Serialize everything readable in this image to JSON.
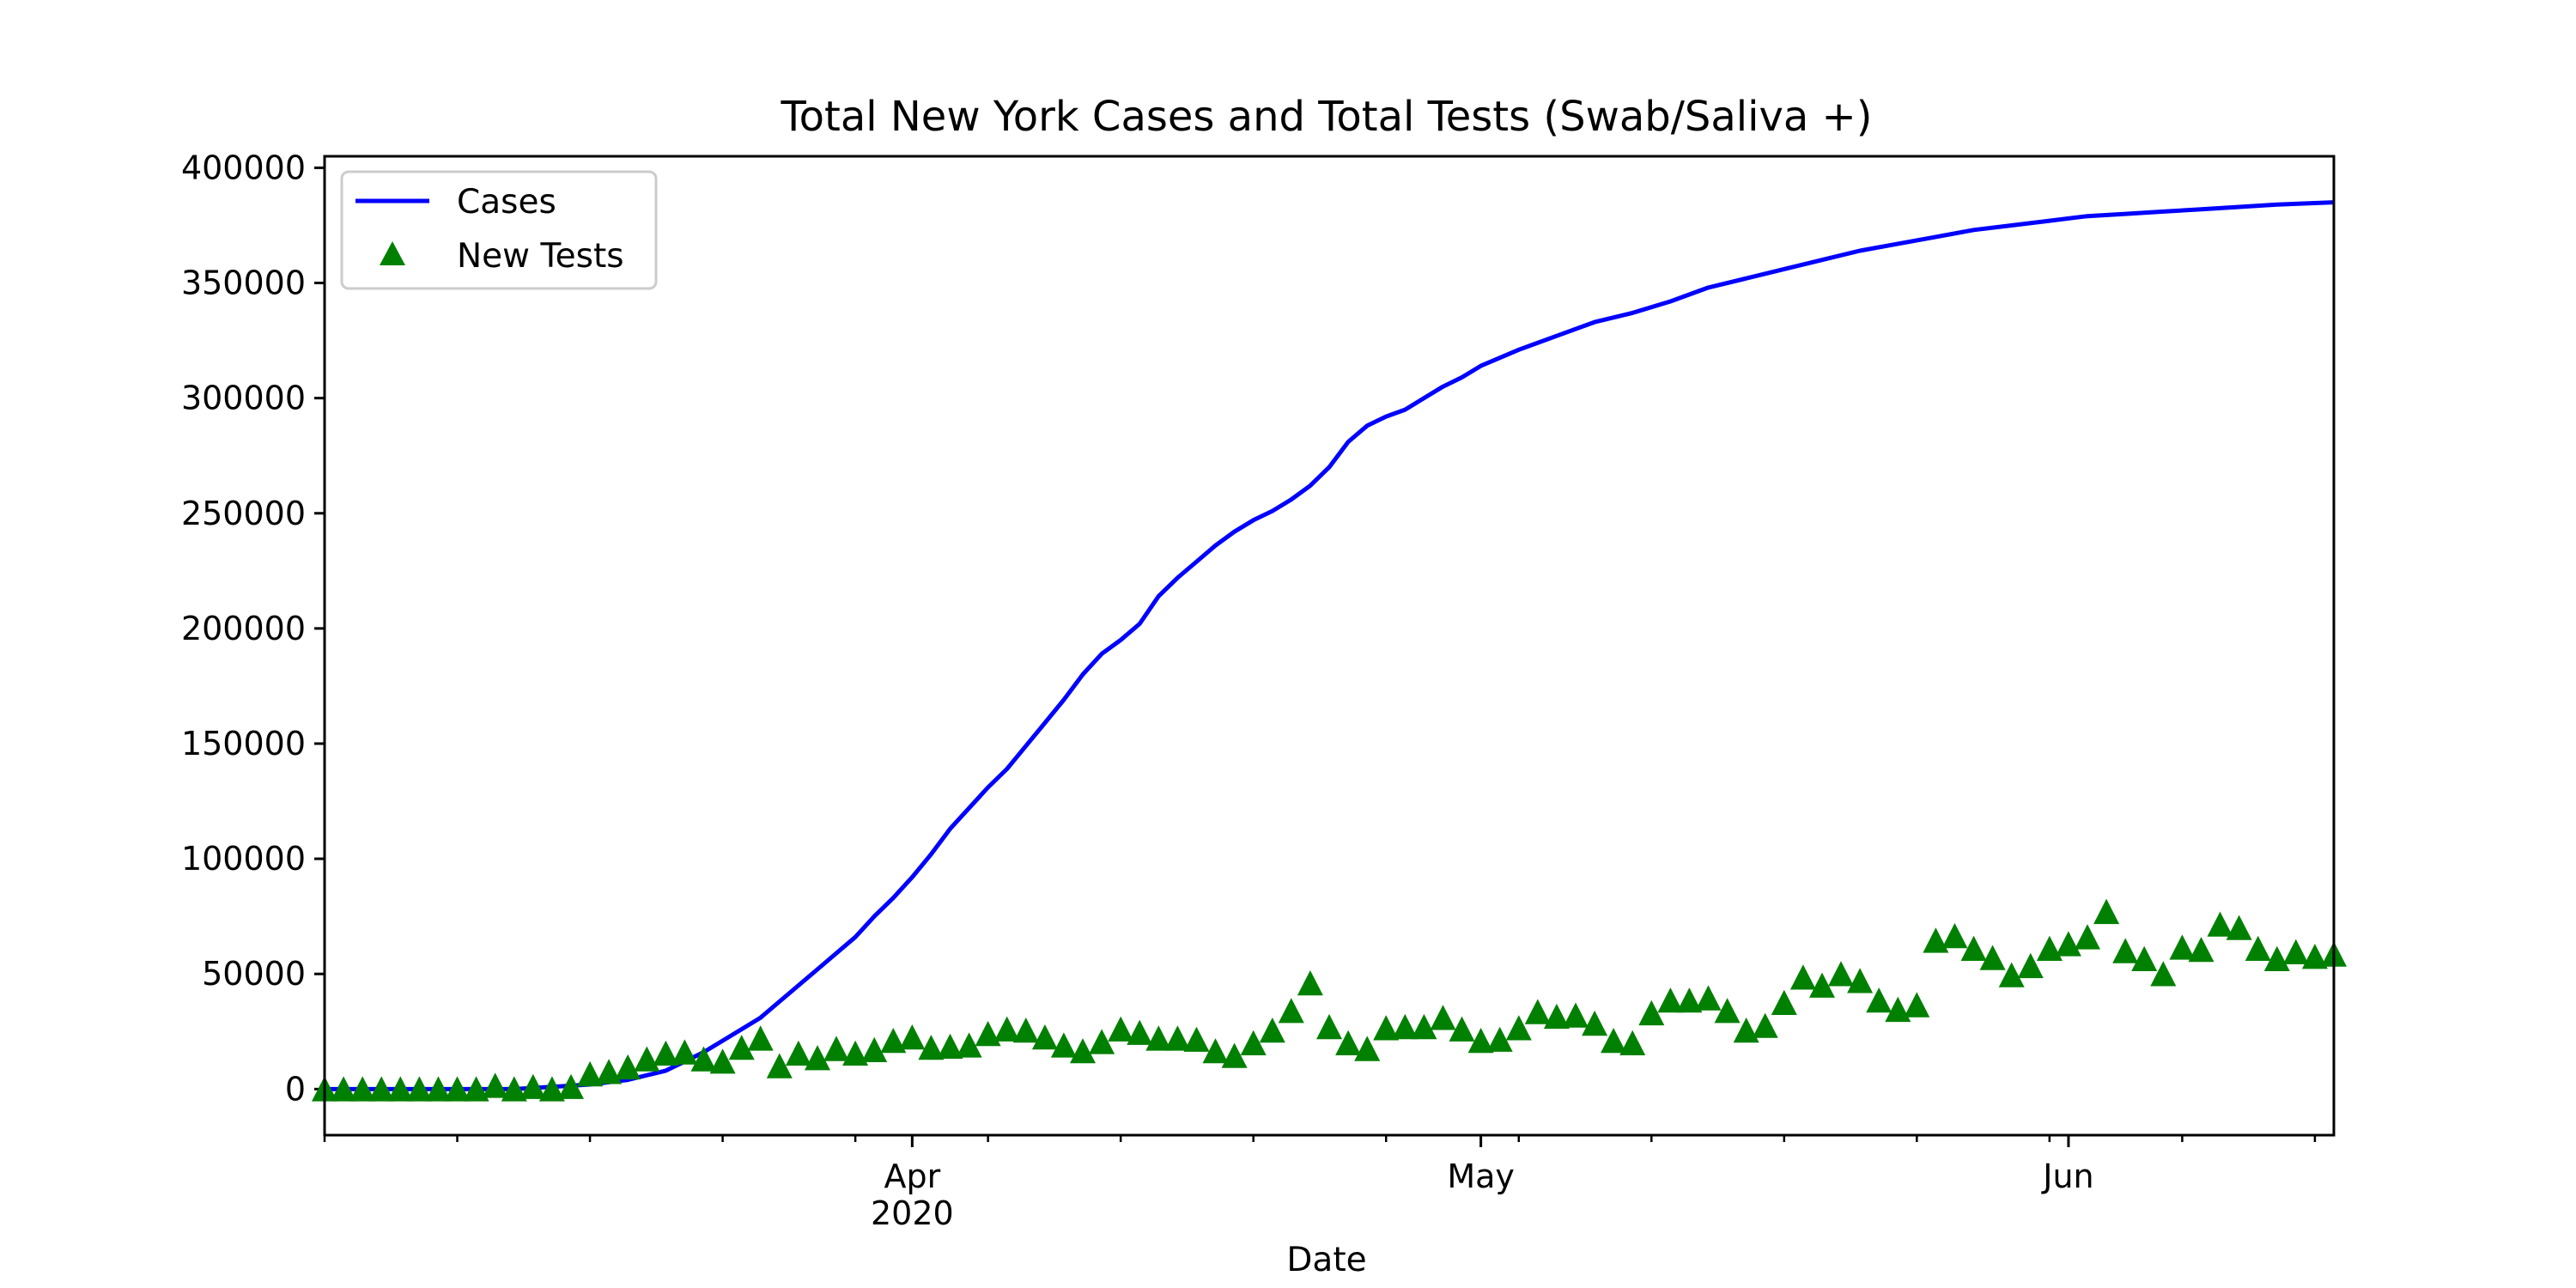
{
  "chart_data": {
    "type": "line",
    "title": "Total New York Cases and Total Tests (Swab/Saliva +)",
    "xlabel": "Date",
    "ylabel": "",
    "x_start": "2020-03-01",
    "x_end": "2020-06-15",
    "xlim": [
      "2020-03-01",
      "2020-06-15"
    ],
    "ylim": [
      -20000,
      405000
    ],
    "grid": false,
    "legend_position": "top-left",
    "y_ticks": [
      0,
      50000,
      100000,
      150000,
      200000,
      250000,
      300000,
      350000,
      400000
    ],
    "x_major_ticks": [
      {
        "date": "2020-04-01",
        "label": "Apr",
        "sublabel": "2020"
      },
      {
        "date": "2020-05-01",
        "label": "May",
        "sublabel": ""
      },
      {
        "date": "2020-06-01",
        "label": "Jun",
        "sublabel": ""
      }
    ],
    "x_minor_ticks": [
      "2020-03-01",
      "2020-03-08",
      "2020-03-15",
      "2020-03-22",
      "2020-03-29",
      "2020-04-05",
      "2020-04-12",
      "2020-04-19",
      "2020-04-26",
      "2020-05-03",
      "2020-05-10",
      "2020-05-17",
      "2020-05-24",
      "2020-05-31",
      "2020-06-07",
      "2020-06-14"
    ],
    "series": [
      {
        "name": "Cases",
        "kind": "line",
        "color": "#0000ff",
        "x": [
          "2020-03-01",
          "2020-03-03",
          "2020-03-05",
          "2020-03-07",
          "2020-03-09",
          "2020-03-11",
          "2020-03-13",
          "2020-03-15",
          "2020-03-17",
          "2020-03-19",
          "2020-03-20",
          "2020-03-21",
          "2020-03-22",
          "2020-03-23",
          "2020-03-24",
          "2020-03-25",
          "2020-03-26",
          "2020-03-27",
          "2020-03-28",
          "2020-03-29",
          "2020-03-30",
          "2020-03-31",
          "2020-04-01",
          "2020-04-02",
          "2020-04-03",
          "2020-04-04",
          "2020-04-05",
          "2020-04-06",
          "2020-04-07",
          "2020-04-08",
          "2020-04-09",
          "2020-04-10",
          "2020-04-11",
          "2020-04-12",
          "2020-04-13",
          "2020-04-14",
          "2020-04-15",
          "2020-04-16",
          "2020-04-17",
          "2020-04-18",
          "2020-04-19",
          "2020-04-20",
          "2020-04-21",
          "2020-04-22",
          "2020-04-23",
          "2020-04-24",
          "2020-04-25",
          "2020-04-26",
          "2020-04-27",
          "2020-04-28",
          "2020-04-29",
          "2020-04-30",
          "2020-05-01",
          "2020-05-03",
          "2020-05-05",
          "2020-05-07",
          "2020-05-09",
          "2020-05-11",
          "2020-05-13",
          "2020-05-15",
          "2020-05-17",
          "2020-05-19",
          "2020-05-21",
          "2020-05-23",
          "2020-05-25",
          "2020-05-27",
          "2020-05-29",
          "2020-05-31",
          "2020-06-02",
          "2020-06-04",
          "2020-06-06",
          "2020-06-08",
          "2020-06-10",
          "2020-06-12",
          "2020-06-15"
        ],
        "values": [
          0,
          0,
          0,
          0,
          0,
          0,
          1000,
          2000,
          4000,
          8000,
          12000,
          16000,
          21000,
          26000,
          31000,
          38000,
          45000,
          52000,
          59000,
          66000,
          75000,
          83000,
          92000,
          102000,
          113000,
          122000,
          131000,
          139000,
          149000,
          159000,
          169000,
          180000,
          189000,
          195000,
          202000,
          214000,
          222000,
          229000,
          236000,
          242000,
          247000,
          251000,
          256000,
          262000,
          270000,
          281000,
          288000,
          292000,
          295000,
          300000,
          305000,
          309000,
          314000,
          321000,
          327000,
          333000,
          337000,
          342000,
          348000,
          352000,
          356000,
          360000,
          364000,
          367000,
          370000,
          373000,
          375000,
          377000,
          379000,
          380000,
          381000,
          382000,
          383000,
          384000,
          385000
        ]
      },
      {
        "name": "New Tests",
        "kind": "scatter",
        "marker": "triangle",
        "color": "#008000",
        "x": [
          "2020-03-01",
          "2020-03-02",
          "2020-03-03",
          "2020-03-04",
          "2020-03-05",
          "2020-03-06",
          "2020-03-07",
          "2020-03-08",
          "2020-03-09",
          "2020-03-10",
          "2020-03-11",
          "2020-03-12",
          "2020-03-13",
          "2020-03-14",
          "2020-03-15",
          "2020-03-16",
          "2020-03-17",
          "2020-03-18",
          "2020-03-19",
          "2020-03-20",
          "2020-03-21",
          "2020-03-22",
          "2020-03-23",
          "2020-03-24",
          "2020-03-25",
          "2020-03-26",
          "2020-03-27",
          "2020-03-28",
          "2020-03-29",
          "2020-03-30",
          "2020-03-31",
          "2020-04-01",
          "2020-04-02",
          "2020-04-03",
          "2020-04-04",
          "2020-04-05",
          "2020-04-06",
          "2020-04-07",
          "2020-04-08",
          "2020-04-09",
          "2020-04-10",
          "2020-04-11",
          "2020-04-12",
          "2020-04-13",
          "2020-04-14",
          "2020-04-15",
          "2020-04-16",
          "2020-04-17",
          "2020-04-18",
          "2020-04-19",
          "2020-04-20",
          "2020-04-21",
          "2020-04-22",
          "2020-04-23",
          "2020-04-24",
          "2020-04-25",
          "2020-04-26",
          "2020-04-27",
          "2020-04-28",
          "2020-04-29",
          "2020-04-30",
          "2020-05-01",
          "2020-05-02",
          "2020-05-03",
          "2020-05-04",
          "2020-05-05",
          "2020-05-06",
          "2020-05-07",
          "2020-05-08",
          "2020-05-09",
          "2020-05-10",
          "2020-05-11",
          "2020-05-12",
          "2020-05-13",
          "2020-05-14",
          "2020-05-15",
          "2020-05-16",
          "2020-05-17",
          "2020-05-18",
          "2020-05-19",
          "2020-05-20",
          "2020-05-21",
          "2020-05-22",
          "2020-05-23",
          "2020-05-24",
          "2020-05-25",
          "2020-05-26",
          "2020-05-27",
          "2020-05-28",
          "2020-05-29",
          "2020-05-30",
          "2020-05-31",
          "2020-06-01",
          "2020-06-02",
          "2020-06-03",
          "2020-06-04",
          "2020-06-05",
          "2020-06-06",
          "2020-06-07",
          "2020-06-08",
          "2020-06-09",
          "2020-06-10",
          "2020-06-11",
          "2020-06-12",
          "2020-06-13",
          "2020-06-14",
          "2020-06-15"
        ],
        "values": [
          0,
          0,
          0,
          0,
          0,
          0,
          0,
          0,
          0,
          1500,
          0,
          1000,
          0,
          1000,
          6500,
          7500,
          9500,
          13000,
          15500,
          16000,
          13000,
          12000,
          18000,
          22000,
          10000,
          15500,
          13500,
          17500,
          15500,
          17000,
          21000,
          22500,
          18000,
          18500,
          19000,
          24000,
          26000,
          25500,
          22500,
          19000,
          16500,
          20500,
          26000,
          24500,
          22000,
          22000,
          21500,
          16500,
          14500,
          20000,
          25500,
          34000,
          46000,
          27000,
          20000,
          17500,
          26500,
          27000,
          27000,
          31000,
          26000,
          21000,
          21500,
          26500,
          33500,
          31500,
          32000,
          28500,
          21000,
          20000,
          33000,
          38500,
          38500,
          39500,
          34000,
          25500,
          27500,
          37500,
          48500,
          45000,
          50000,
          47000,
          38500,
          34500,
          36500,
          64500,
          66500,
          61000,
          57000,
          49500,
          53500,
          61000,
          63000,
          66000,
          77000,
          60000,
          56500,
          50000,
          61500,
          60500,
          71500,
          70000,
          61000,
          56500,
          59500,
          57500,
          58500
        ]
      }
    ]
  }
}
